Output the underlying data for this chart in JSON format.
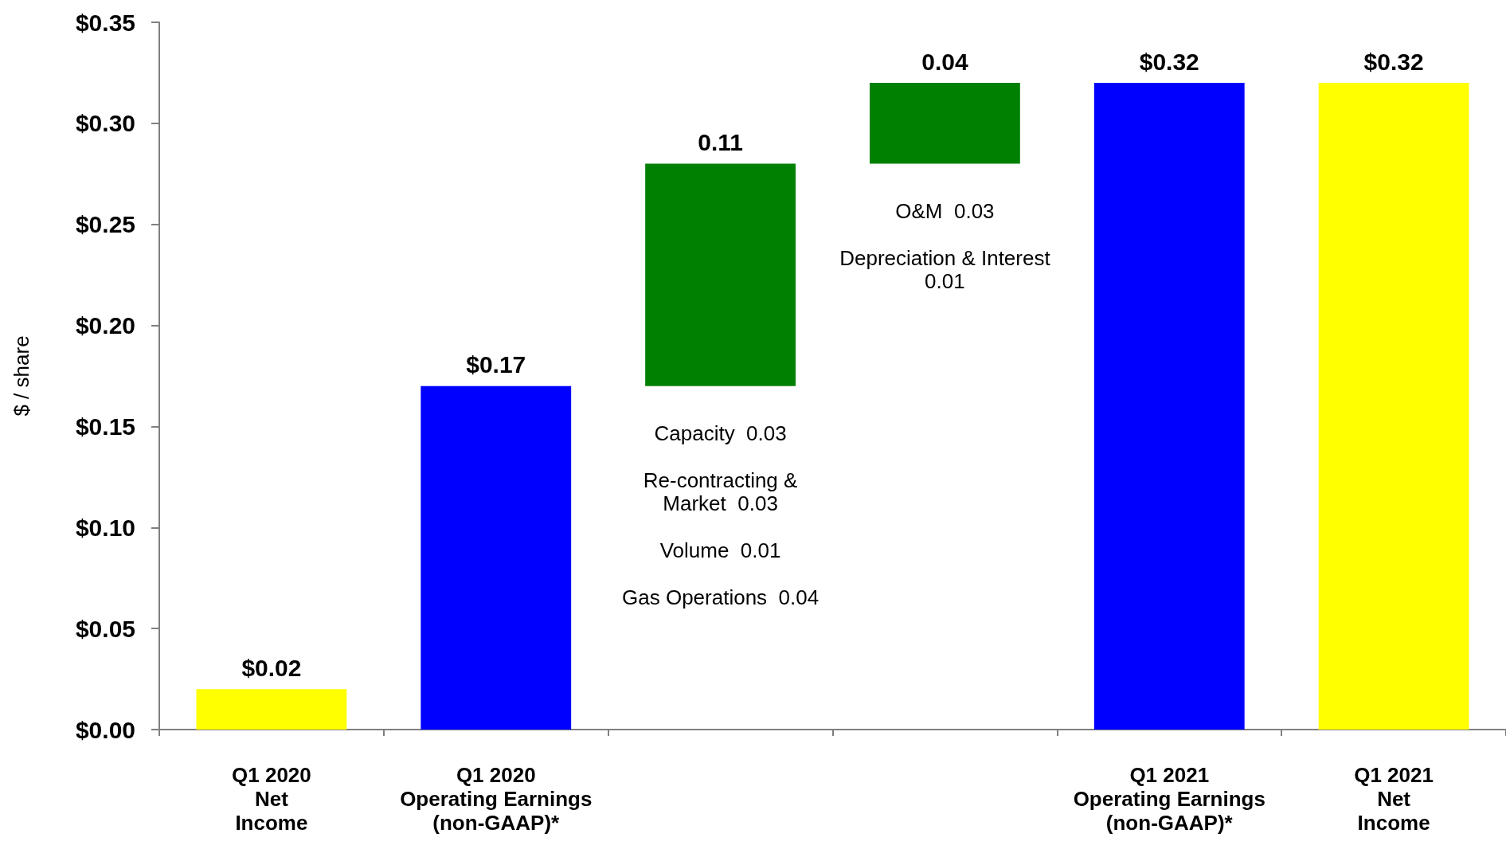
{
  "chart_data": {
    "type": "bar",
    "ylabel": "$ / share",
    "categories": [
      "Q1 2020\nNet\nIncome",
      "Q1 2020\nOperating Earnings\n(non-GAAP)*",
      null,
      null,
      "Q1 2021\nOperating Earnings\n(non-GAAP)*",
      "Q1 2021\nNet\nIncome"
    ],
    "values": [
      0.02,
      0.17,
      0.11,
      0.04,
      0.32,
      0.32
    ],
    "base": [
      0,
      0,
      0.17,
      0.28,
      0,
      0
    ],
    "colors": [
      "#ffff00",
      "#0000ff",
      "#008000",
      "#008000",
      "#0000ff",
      "#ffff00"
    ],
    "value_labels": [
      "$0.02",
      "$0.17",
      "0.11",
      "0.04",
      "$0.32",
      "$0.32"
    ],
    "ylim": [
      0,
      0.35
    ],
    "yticks": [
      {
        "value": 0,
        "label": "$0.00"
      },
      {
        "value": 0.05,
        "label": "$0.05"
      },
      {
        "value": 0.1,
        "label": "$0.10"
      },
      {
        "value": 0.15,
        "label": "$0.15"
      },
      {
        "value": 0.2,
        "label": "$0.20"
      },
      {
        "value": 0.25,
        "label": "$0.25"
      },
      {
        "value": 0.3,
        "label": "$0.30"
      },
      {
        "value": 0.35,
        "label": "$0.35"
      }
    ],
    "annotations": [
      "Capacity  0.03",
      "Re-contracting &\nMarket  0.03",
      "Volume  0.01",
      "Gas Operations  0.04",
      "O&M  0.03",
      "Depreciation & Interest\n0.01"
    ],
    "grid": false
  }
}
